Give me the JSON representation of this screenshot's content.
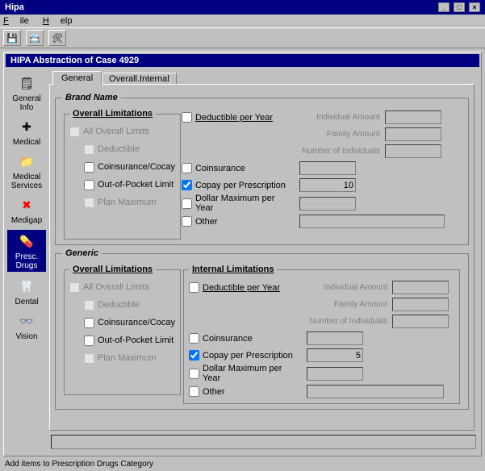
{
  "window": {
    "title": "Hipa"
  },
  "menu": {
    "file": "File",
    "help": "Help"
  },
  "panel": {
    "title": "HIPA Abstraction of Case 4929"
  },
  "sidebar": {
    "items": [
      {
        "label": "General\nInfo",
        "icon": "🗒"
      },
      {
        "label": "Medical",
        "icon": "✚"
      },
      {
        "label": "Medical\nServices",
        "icon": "📁"
      },
      {
        "label": "Medigap",
        "icon": "✖",
        "color": "#ff0000"
      },
      {
        "label": "Presc.\nDrugs",
        "icon": "💊",
        "selected": true
      },
      {
        "label": "Dental",
        "icon": "🦷"
      },
      {
        "label": "Vision",
        "icon": "👓"
      }
    ]
  },
  "tabs": {
    "general": "General",
    "internal": "Overall.Internal"
  },
  "brand": {
    "legend": "Brand Name",
    "overall_legend": "Overall Limitations",
    "all_overall_limits": "All Overall Limits",
    "deductible": "Deductible",
    "coins_cocay": "Coinsurance/Cocay",
    "oop_limit": "Out-of-Pocket Limit",
    "plan_max": "Plan Maximum",
    "ded_per_year": "Deductible per Year",
    "coinsurance": "Coinsurance",
    "copay_rx": "Copay per Prescription",
    "copay_rx_val": "10",
    "dollar_max": "Dollar Maximum per Year",
    "other": "Other",
    "indiv_amount": "Individual Amount",
    "family_amount": "Family Amount",
    "num_indiv": "Number of Individuals"
  },
  "generic": {
    "legend": "Generic",
    "overall_legend": "Overall Limitations",
    "internal_legend": "Internal Limitations",
    "all_overall_limits": "All Overall Limits",
    "deductible": "Deductible",
    "coins_cocay": "Coinsurance/Cocay",
    "oop_limit": "Out-of-Pocket Limit",
    "plan_max": "Plan Maximum",
    "ded_per_year": "Deductible per Year",
    "coinsurance": "Coinsurance",
    "copay_rx": "Copay per Prescription",
    "copay_rx_val": "5",
    "dollar_max": "Dollar Maximum per Year",
    "other": "Other",
    "indiv_amount": "Individual Amount",
    "family_amount": "Family Amount",
    "num_indiv": "Number of Individuals"
  },
  "footer": "Add items to Prescription Drugs Category"
}
